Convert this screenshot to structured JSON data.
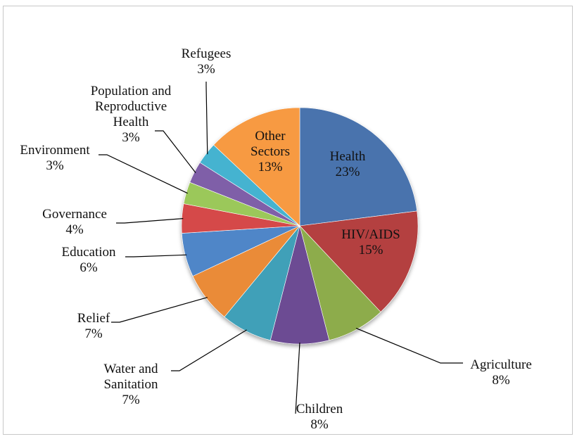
{
  "chart_data": {
    "type": "pie",
    "title": "",
    "slices": [
      {
        "label": "Health",
        "value": 23,
        "pct_label": "23%",
        "color": "#4a73ad"
      },
      {
        "label": "HIV/AIDS",
        "value": 15,
        "pct_label": "15%",
        "color": "#b4413f"
      },
      {
        "label": "Agriculture",
        "value": 8,
        "pct_label": "8%",
        "color": "#8dac4b"
      },
      {
        "label": "Children",
        "value": 8,
        "pct_label": "8%",
        "color": "#6c4c93"
      },
      {
        "label": "Water and Sanitation",
        "value": 7,
        "pct_label": "7%",
        "color": "#3fa0b8"
      },
      {
        "label": "Relief",
        "value": 7,
        "pct_label": "7%",
        "color": "#ea8b37"
      },
      {
        "label": "Education",
        "value": 6,
        "pct_label": "6%",
        "color": "#4f86c8"
      },
      {
        "label": "Governance",
        "value": 4,
        "pct_label": "4%",
        "color": "#d5494a"
      },
      {
        "label": "Environment",
        "value": 3,
        "pct_label": "3%",
        "color": "#9bc85a"
      },
      {
        "label": "Population and Reproductive Health",
        "value": 3,
        "pct_label": "3%",
        "color": "#7f5fa8"
      },
      {
        "label": "Refugees",
        "value": 3,
        "pct_label": "3%",
        "color": "#44b3d0"
      },
      {
        "label": "Other Sectors",
        "value": 13,
        "pct_label": "13%",
        "color": "#f79a43"
      }
    ]
  }
}
